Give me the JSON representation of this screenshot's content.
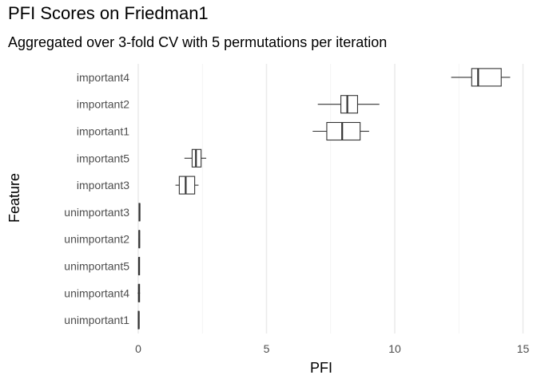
{
  "chart_data": {
    "type": "boxplot",
    "orientation": "horizontal",
    "title": "PFI Scores on Friedman1",
    "subtitle": "Aggregated over 3-fold CV with 5 permutations per iteration",
    "xlabel": "PFI",
    "ylabel": "Feature",
    "xlim": [
      -0.7,
      15.2
    ],
    "x_ticks": [
      0,
      5,
      10,
      15
    ],
    "grid": "major vertical",
    "legend": "none",
    "categories": [
      "important4",
      "important2",
      "important1",
      "important5",
      "important3",
      "unimportant3",
      "unimportant2",
      "unimportant5",
      "unimportant4",
      "unimportant1"
    ],
    "boxes": [
      {
        "feature": "important4",
        "min": 12.2,
        "q1": 13.0,
        "median": 13.25,
        "q3": 14.15,
        "max": 14.5
      },
      {
        "feature": "important2",
        "min": 7.0,
        "q1": 7.9,
        "median": 8.15,
        "q3": 8.55,
        "max": 9.4
      },
      {
        "feature": "important1",
        "min": 6.8,
        "q1": 7.35,
        "median": 7.95,
        "q3": 8.65,
        "max": 9.0
      },
      {
        "feature": "important5",
        "min": 1.8,
        "q1": 2.1,
        "median": 2.25,
        "q3": 2.45,
        "max": 2.65
      },
      {
        "feature": "important3",
        "min": 1.45,
        "q1": 1.6,
        "median": 1.85,
        "q3": 2.2,
        "max": 2.35
      },
      {
        "feature": "unimportant3",
        "min": 0.02,
        "q1": 0.03,
        "median": 0.05,
        "q3": 0.06,
        "max": 0.07
      },
      {
        "feature": "unimportant2",
        "min": 0.01,
        "q1": 0.03,
        "median": 0.04,
        "q3": 0.05,
        "max": 0.07
      },
      {
        "feature": "unimportant5",
        "min": 0.0,
        "q1": 0.02,
        "median": 0.03,
        "q3": 0.05,
        "max": 0.06
      },
      {
        "feature": "unimportant4",
        "min": -0.02,
        "q1": 0.01,
        "median": 0.03,
        "q3": 0.05,
        "max": 0.07
      },
      {
        "feature": "unimportant1",
        "min": -0.01,
        "q1": 0.0,
        "median": 0.02,
        "q3": 0.03,
        "max": 0.04
      }
    ]
  }
}
